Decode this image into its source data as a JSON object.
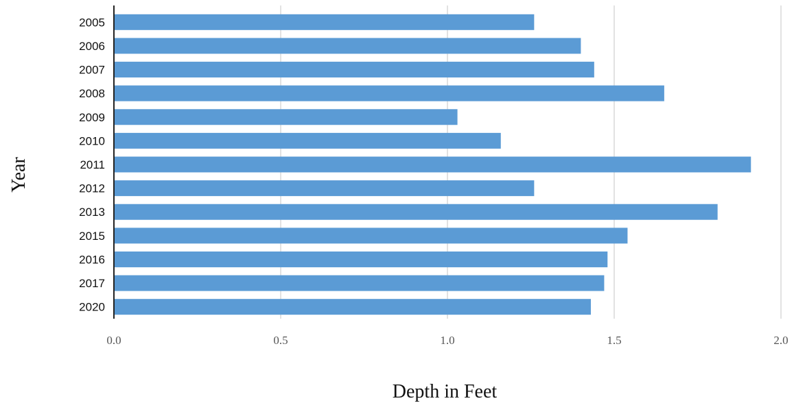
{
  "chart_data": {
    "type": "bar",
    "orientation": "horizontal",
    "categories": [
      "2005",
      "2006",
      "2007",
      "2008",
      "2009",
      "2010",
      "2011",
      "2012",
      "2013",
      "2015",
      "2016",
      "2017",
      "2020"
    ],
    "values": [
      1.26,
      1.4,
      1.44,
      1.65,
      1.03,
      1.16,
      1.91,
      1.26,
      1.81,
      1.54,
      1.48,
      1.47,
      1.43
    ],
    "xlabel": "Depth in Feet",
    "ylabel": "Year",
    "xlim": [
      0,
      2.0
    ],
    "xticks": [
      "0.0",
      "0.5",
      "1.0",
      "1.5",
      "2.0"
    ],
    "grid": true,
    "bar_color": "#5B9BD5",
    "grid_color": "#D9D9D9",
    "axis_color": "#222222"
  }
}
